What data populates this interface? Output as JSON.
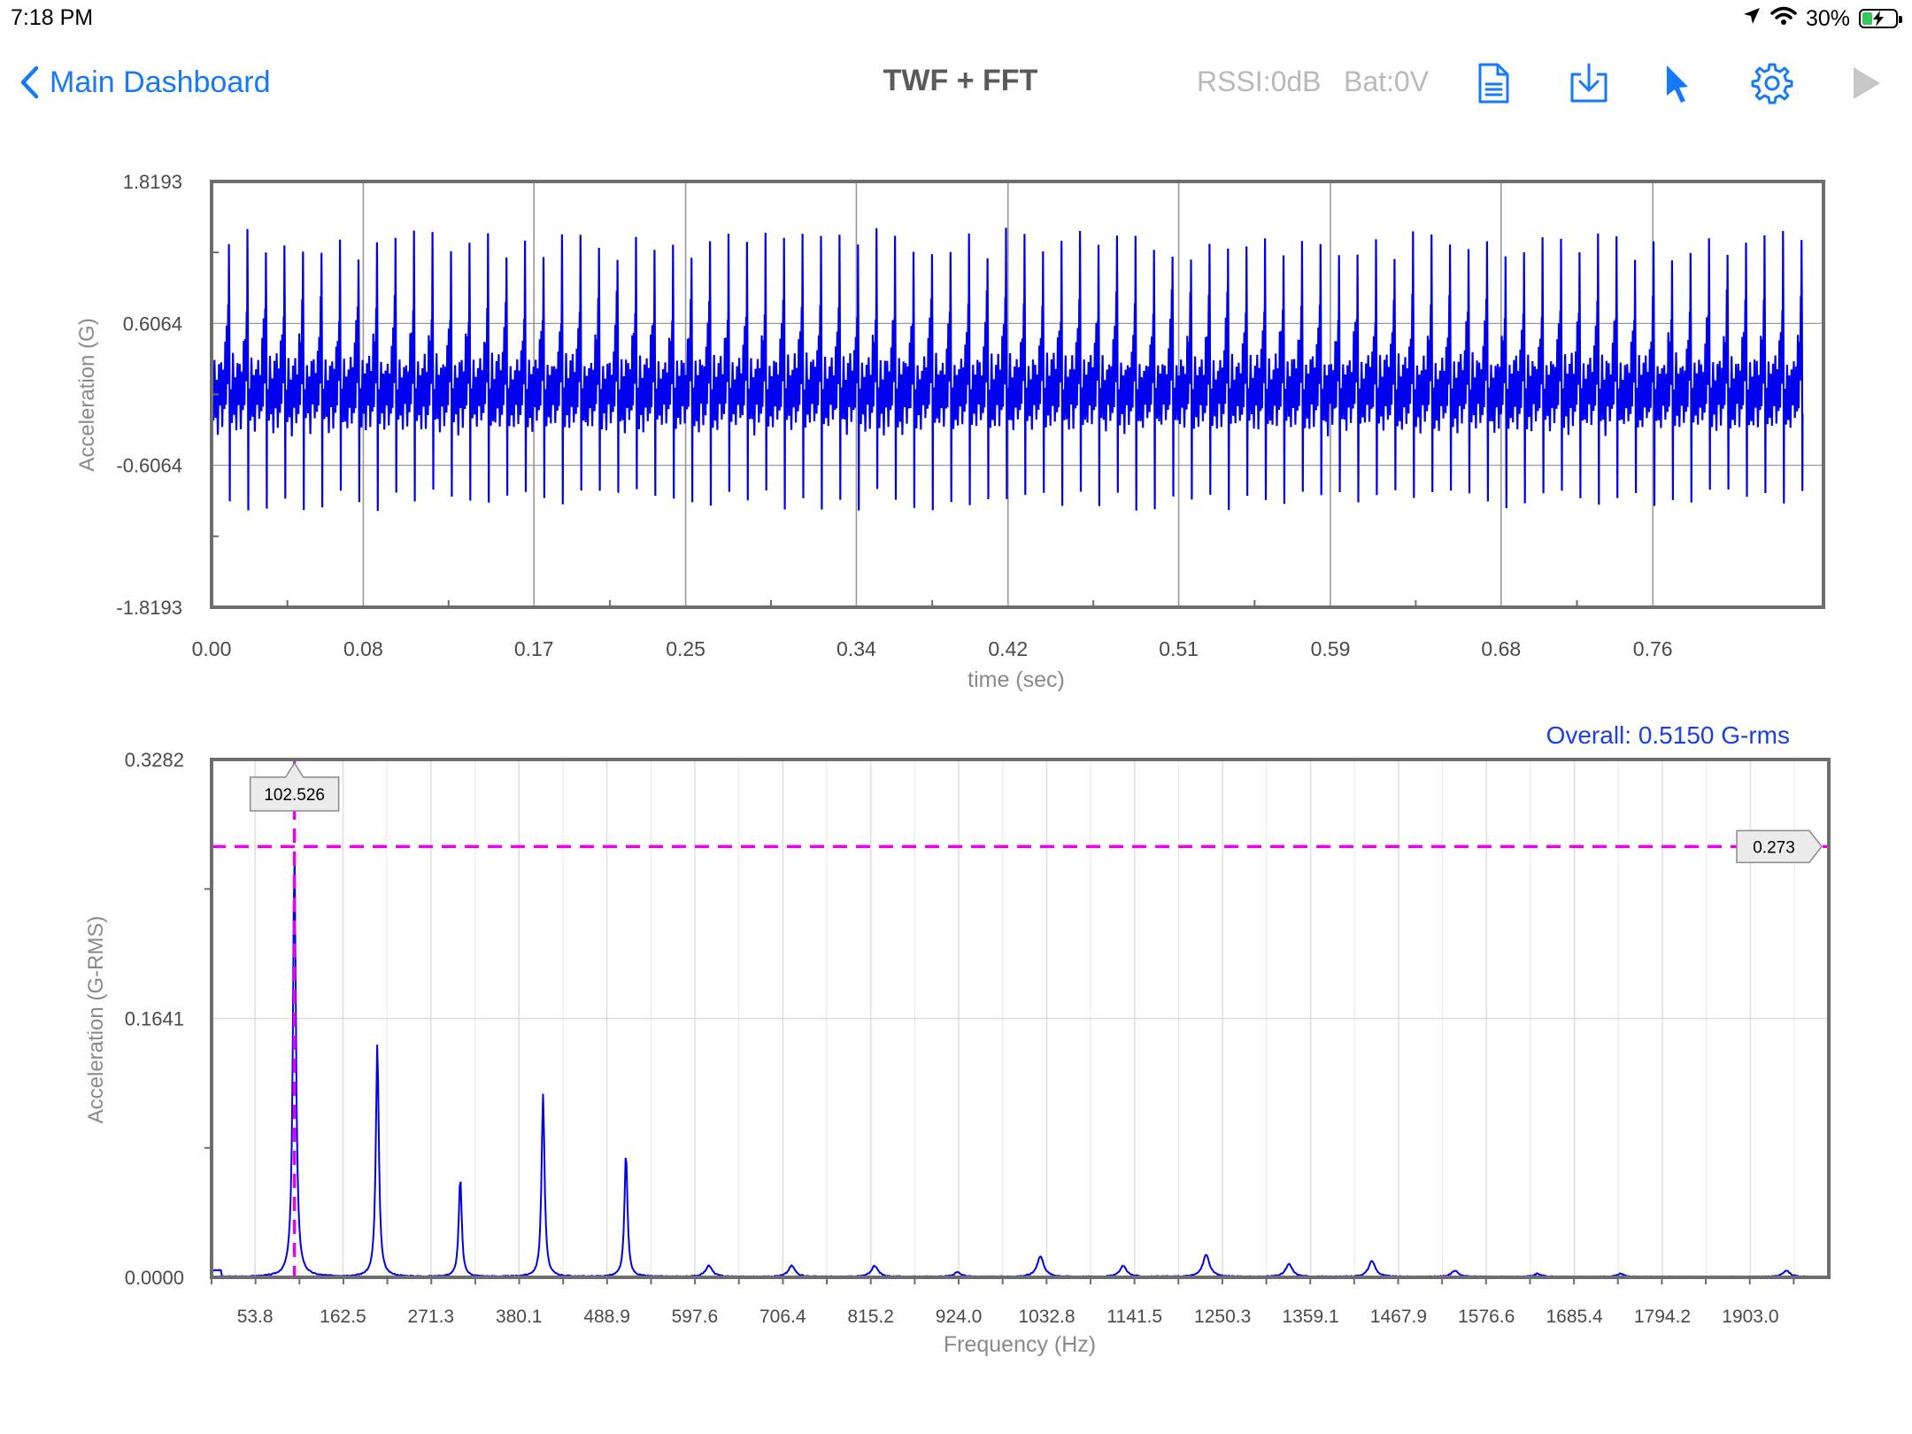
{
  "status_bar": {
    "time": "7:18 PM",
    "battery": "30%",
    "battery_level": 0.3,
    "icons": [
      "location-icon",
      "wifi-icon",
      "battery-charging-icon"
    ]
  },
  "nav": {
    "back_label": "Main Dashboard",
    "title": "TWF + FFT",
    "rssi": "RSSI:0dB",
    "battery": "Bat:0V",
    "toolbar_icons": [
      "document-icon",
      "download-icon",
      "pointer-icon",
      "gear-icon",
      "play-icon"
    ],
    "accent_color": "#1479fb"
  },
  "twf": {
    "ylabel": "Acceleration (G)",
    "xlabel": "time (sec)",
    "ytick_labels": [
      "1.8193",
      "0.6064",
      "-0.6064",
      "-1.8193"
    ],
    "xtick_labels": [
      "0.00",
      "0.08",
      "0.17",
      "0.25",
      "0.34",
      "0.42",
      "0.51",
      "0.59",
      "0.68",
      "0.76"
    ]
  },
  "fft": {
    "overall": "Overall: 0.5150 G-rms",
    "ylabel": "Acceleration (G-RMS)",
    "xlabel": "Frequency (Hz)",
    "ytick_labels": [
      "0.3282",
      "0.1641",
      "0.0000"
    ],
    "xtick_labels": [
      "53.8",
      "162.5",
      "271.3",
      "380.1",
      "488.9",
      "597.6",
      "706.4",
      "815.2",
      "924.0",
      "1032.8",
      "1141.5",
      "1250.3",
      "1359.1",
      "1467.9",
      "1576.6",
      "1685.4",
      "1794.2",
      "1903.0"
    ],
    "cursor_x_label": "102.526",
    "cursor_y_label": "0.273"
  },
  "chart_data": [
    {
      "type": "line",
      "title": "",
      "xlabel": "time (sec)",
      "ylabel": "Acceleration (G)",
      "xlim": [
        0.0,
        0.85
      ],
      "ylim": [
        -1.8193,
        1.8193
      ],
      "yticks": [
        -1.8193,
        -0.6064,
        0.6064,
        1.8193
      ],
      "xticks": [
        0.0,
        0.08,
        0.17,
        0.25,
        0.34,
        0.42,
        0.51,
        0.59,
        0.68,
        0.76
      ],
      "grid": true,
      "series_color": "#0000ee",
      "fundamental_hz": 102.5,
      "pos_peak_amplitude": 1.3,
      "neg_peak_amplitude": -0.95,
      "baseline_noise": 0.2
    },
    {
      "type": "line",
      "title": "",
      "xlabel": "Frequency (Hz)",
      "ylabel": "Acceleration (G-RMS)",
      "xlim": [
        0.0,
        2000.0
      ],
      "ylim": [
        0.0,
        0.3282
      ],
      "yticks": [
        0.0,
        0.1641,
        0.3282
      ],
      "xticks": [
        53.8,
        162.5,
        271.3,
        380.1,
        488.9,
        597.6,
        706.4,
        815.2,
        924.0,
        1032.8,
        1141.5,
        1250.3,
        1359.1,
        1467.9,
        1576.6,
        1685.4,
        1794.2,
        1903.0
      ],
      "grid": true,
      "series_color": "#0000ee",
      "overall_grms": 0.515,
      "peaks": [
        {
          "x": 102.5,
          "y": 0.273
        },
        {
          "x": 205.0,
          "y": 0.148
        },
        {
          "x": 307.5,
          "y": 0.063
        },
        {
          "x": 410.0,
          "y": 0.116
        },
        {
          "x": 512.5,
          "y": 0.079
        },
        {
          "x": 615.0,
          "y": 0.007
        },
        {
          "x": 717.5,
          "y": 0.007
        },
        {
          "x": 820.0,
          "y": 0.007
        },
        {
          "x": 922.5,
          "y": 0.003
        },
        {
          "x": 1025.0,
          "y": 0.013
        },
        {
          "x": 1127.5,
          "y": 0.007
        },
        {
          "x": 1230.0,
          "y": 0.014
        },
        {
          "x": 1332.5,
          "y": 0.008
        },
        {
          "x": 1435.0,
          "y": 0.01
        },
        {
          "x": 1537.5,
          "y": 0.004
        },
        {
          "x": 1640.0,
          "y": 0.002
        },
        {
          "x": 1742.5,
          "y": 0.002
        },
        {
          "x": 1947.5,
          "y": 0.004
        }
      ],
      "cursor": {
        "x": 102.526,
        "y": 0.273,
        "color": "#ee00ee"
      }
    }
  ]
}
